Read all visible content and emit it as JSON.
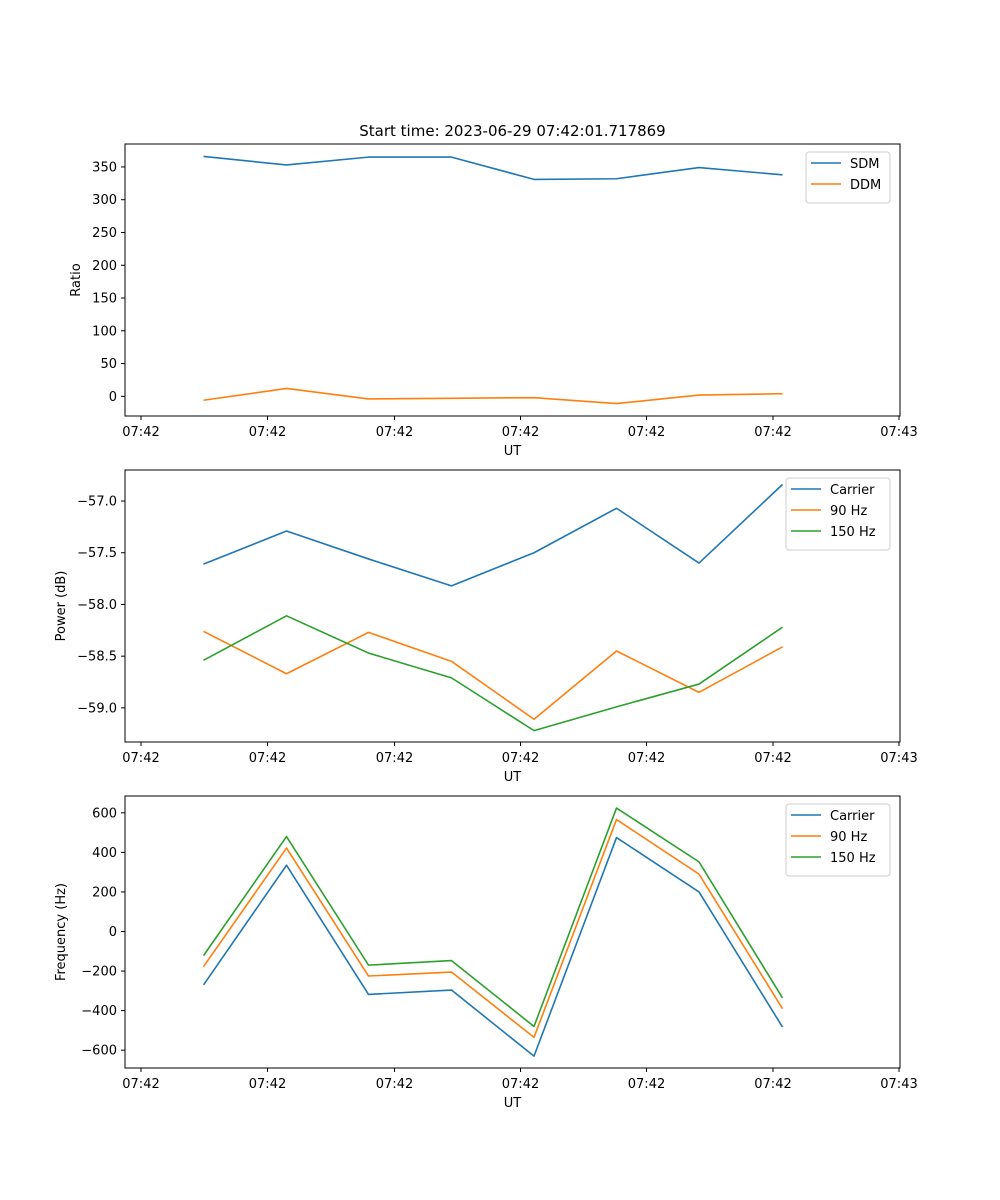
{
  "figure": {
    "title": "Start time: 2023-06-29 07:42:01.717869"
  },
  "colors": {
    "blue": "#1f77b4",
    "orange": "#ff7f0e",
    "green": "#2ca02c"
  },
  "chart_data": [
    {
      "type": "line",
      "title": "Start time: 2023-06-29 07:42:01.717869",
      "xlabel": "UT",
      "ylabel": "Ratio",
      "x_tick_labels": [
        "07:42",
        "07:42",
        "07:42",
        "07:42",
        "07:42",
        "07:42",
        "07:43"
      ],
      "yticks": [
        0,
        50,
        100,
        150,
        200,
        250,
        300,
        350
      ],
      "ylim": [
        -30,
        385
      ],
      "grid": false,
      "legend": "top-right",
      "series": [
        {
          "name": "SDM",
          "color": "#1f77b4",
          "values": [
            366,
            353,
            365,
            365,
            331,
            332,
            349,
            338
          ]
        },
        {
          "name": "DDM",
          "color": "#ff7f0e",
          "values": [
            -6,
            12,
            -4,
            -3,
            -2,
            -11,
            2,
            4
          ]
        }
      ]
    },
    {
      "type": "line",
      "title": "",
      "xlabel": "UT",
      "ylabel": "Power (dB)",
      "x_tick_labels": [
        "07:42",
        "07:42",
        "07:42",
        "07:42",
        "07:42",
        "07:42",
        "07:43"
      ],
      "yticks": [
        -59.0,
        -58.5,
        -58.0,
        -57.5,
        -57.0
      ],
      "ytick_labels": [
        "−59.0",
        "−58.5",
        "−58.0",
        "−57.5",
        "−57.0"
      ],
      "ylim": [
        -59.33,
        -56.7
      ],
      "grid": false,
      "legend": "top-right",
      "series": [
        {
          "name": "Carrier",
          "color": "#1f77b4",
          "values": [
            -57.61,
            -57.29,
            -57.56,
            -57.82,
            -57.5,
            -57.07,
            -57.6,
            -56.84
          ]
        },
        {
          "name": "90 Hz",
          "color": "#ff7f0e",
          "values": [
            -58.26,
            -58.67,
            -58.27,
            -58.55,
            -59.11,
            -58.45,
            -58.85,
            -58.41
          ]
        },
        {
          "name": "150 Hz",
          "color": "#2ca02c",
          "values": [
            -58.54,
            -58.11,
            -58.47,
            -58.71,
            -59.22,
            -58.99,
            -58.77,
            -58.22
          ]
        }
      ]
    },
    {
      "type": "line",
      "title": "",
      "xlabel": "UT",
      "ylabel": "Frequency (Hz)",
      "x_tick_labels": [
        "07:42",
        "07:42",
        "07:42",
        "07:42",
        "07:42",
        "07:42",
        "07:43"
      ],
      "yticks": [
        -600,
        -400,
        -200,
        0,
        200,
        400,
        600
      ],
      "ytick_labels": [
        "−600",
        "−400",
        "−200",
        "0",
        "200",
        "400",
        "600"
      ],
      "ylim": [
        -690,
        685
      ],
      "grid": false,
      "legend": "top-right",
      "series": [
        {
          "name": "Carrier",
          "color": "#1f77b4",
          "values": [
            -270,
            335,
            -318,
            -296,
            -630,
            475,
            200,
            -483
          ]
        },
        {
          "name": "90 Hz",
          "color": "#ff7f0e",
          "values": [
            -178,
            422,
            -225,
            -205,
            -535,
            566,
            290,
            -390
          ]
        },
        {
          "name": "150 Hz",
          "color": "#2ca02c",
          "values": [
            -122,
            480,
            -170,
            -147,
            -480,
            624,
            352,
            -336
          ]
        }
      ]
    }
  ]
}
